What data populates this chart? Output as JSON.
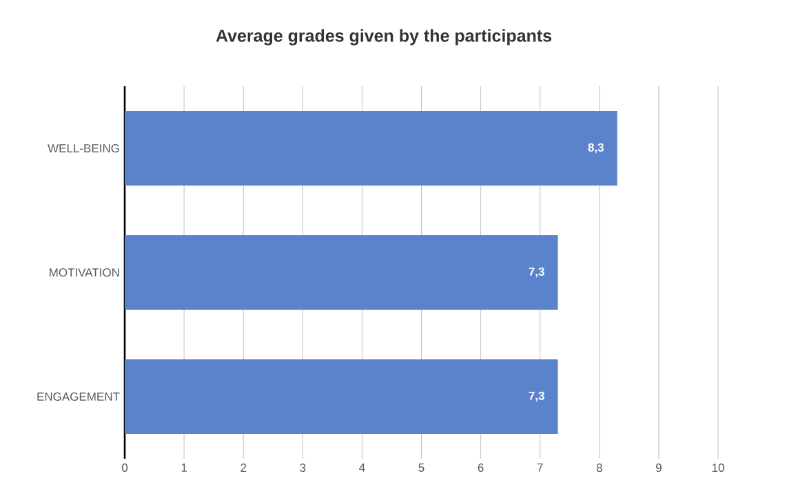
{
  "chart_data": {
    "type": "bar",
    "orientation": "horizontal",
    "title": "Average grades given by the participants",
    "categories": [
      "WELL-BEING",
      "MOTIVATION",
      "ENGAGEMENT"
    ],
    "values": [
      8.3,
      7.3,
      7.3
    ],
    "value_labels": [
      "8,3",
      "7,3",
      "7,3"
    ],
    "color": "#5b83cc",
    "xlim": [
      0,
      10
    ],
    "xticks": [
      0,
      1,
      2,
      3,
      4,
      5,
      6,
      7,
      8,
      9,
      10
    ],
    "grid": "x"
  }
}
